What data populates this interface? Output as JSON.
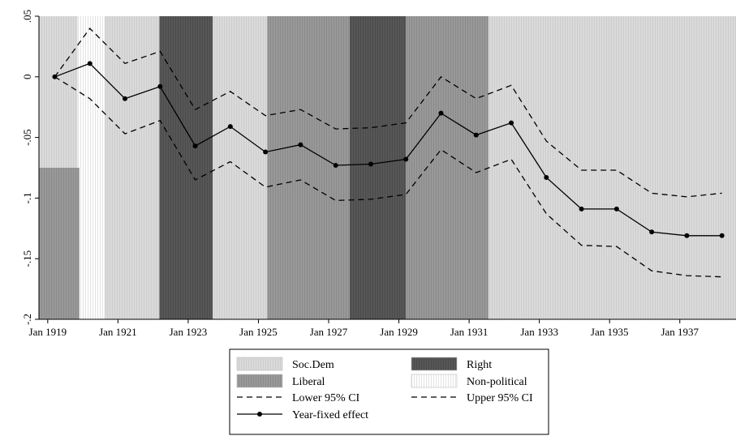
{
  "chart_data": {
    "type": "line",
    "title": "",
    "xlabel": "",
    "ylabel": "",
    "xlim": [
      1918.75,
      1938.6
    ],
    "ylim": [
      -0.2,
      0.05
    ],
    "x_ticks": [
      1919,
      1921,
      1923,
      1925,
      1927,
      1929,
      1931,
      1933,
      1935,
      1937
    ],
    "x_tick_labels": [
      "Jan 1919",
      "Jan 1921",
      "Jan 1923",
      "Jan 1925",
      "Jan 1927",
      "Jan 1929",
      "Jan 1931",
      "Jan 1933",
      "Jan 1935",
      "Jan 1937"
    ],
    "y_ticks": [
      0.05,
      0,
      -0.05,
      -0.1,
      -0.15,
      -0.2
    ],
    "y_tick_labels": [
      ".05",
      "0",
      "-.05",
      "-.1",
      "-.15",
      "-.2"
    ],
    "x": [
      1919.2,
      1920.2,
      1921.2,
      1922.2,
      1923.2,
      1924.2,
      1925.2,
      1926.2,
      1927.2,
      1928.2,
      1929.2,
      1930.2,
      1931.2,
      1932.2,
      1933.2,
      1934.2,
      1935.2,
      1936.2,
      1937.2,
      1938.2
    ],
    "series": [
      {
        "name": "Year-fixed effect",
        "style": "solid-markers",
        "values": [
          0,
          0.011,
          -0.018,
          -0.008,
          -0.057,
          -0.041,
          -0.062,
          -0.056,
          -0.073,
          -0.072,
          -0.068,
          -0.03,
          -0.048,
          -0.038,
          -0.083,
          -0.109,
          -0.109,
          -0.128,
          -0.131,
          -0.131
        ]
      },
      {
        "name": "Upper 95% CI",
        "style": "dashed",
        "values": [
          0,
          0.04,
          0.011,
          0.021,
          -0.027,
          -0.012,
          -0.032,
          -0.027,
          -0.043,
          -0.042,
          -0.038,
          0.0,
          -0.018,
          -0.007,
          -0.053,
          -0.077,
          -0.077,
          -0.096,
          -0.099,
          -0.096
        ]
      },
      {
        "name": "Lower 95% CI",
        "style": "dashed",
        "values": [
          0,
          -0.018,
          -0.047,
          -0.036,
          -0.085,
          -0.07,
          -0.091,
          -0.085,
          -0.102,
          -0.101,
          -0.097,
          -0.06,
          -0.079,
          -0.068,
          -0.113,
          -0.139,
          -0.14,
          -0.16,
          -0.164,
          -0.165
        ]
      }
    ],
    "bands": [
      {
        "start": 1918.75,
        "end": 1919.85,
        "party": "Soc.Dem"
      },
      {
        "start": 1919.85,
        "end": 1920.62,
        "party": "Non-political"
      },
      {
        "start": 1920.62,
        "end": 1922.18,
        "party": "Soc.Dem"
      },
      {
        "start": 1922.18,
        "end": 1923.7,
        "party": "Right"
      },
      {
        "start": 1923.7,
        "end": 1925.25,
        "party": "Soc.Dem"
      },
      {
        "start": 1925.25,
        "end": 1927.6,
        "party": "Liberal"
      },
      {
        "start": 1927.6,
        "end": 1929.2,
        "party": "Right"
      },
      {
        "start": 1929.2,
        "end": 1931.55,
        "party": "Liberal"
      },
      {
        "start": 1931.55,
        "end": 1938.6,
        "party": "Soc.Dem"
      }
    ],
    "inset_band": {
      "start": 1918.75,
      "end": 1919.9,
      "party": "Liberal",
      "top": -0.075,
      "bottom": -0.2
    },
    "colors": {
      "Soc.Dem": "#d9d9d9",
      "Liberal": "#969696",
      "Right": "#555555",
      "Non-political": "#ffffff",
      "line": "#000000"
    },
    "grid": false,
    "legend_position": "bottom"
  },
  "legend": {
    "items": [
      {
        "label": "Soc.Dem",
        "kind": "swatch",
        "party": "Soc.Dem"
      },
      {
        "label": "Right",
        "kind": "swatch",
        "party": "Right"
      },
      {
        "label": "Liberal",
        "kind": "swatch",
        "party": "Liberal"
      },
      {
        "label": "Non-political",
        "kind": "swatch",
        "party": "Non-political"
      },
      {
        "label": "Lower 95% CI",
        "kind": "dashed"
      },
      {
        "label": "Upper 95% CI",
        "kind": "dashed"
      },
      {
        "label": "Year-fixed effect",
        "kind": "solid-marker"
      }
    ]
  }
}
